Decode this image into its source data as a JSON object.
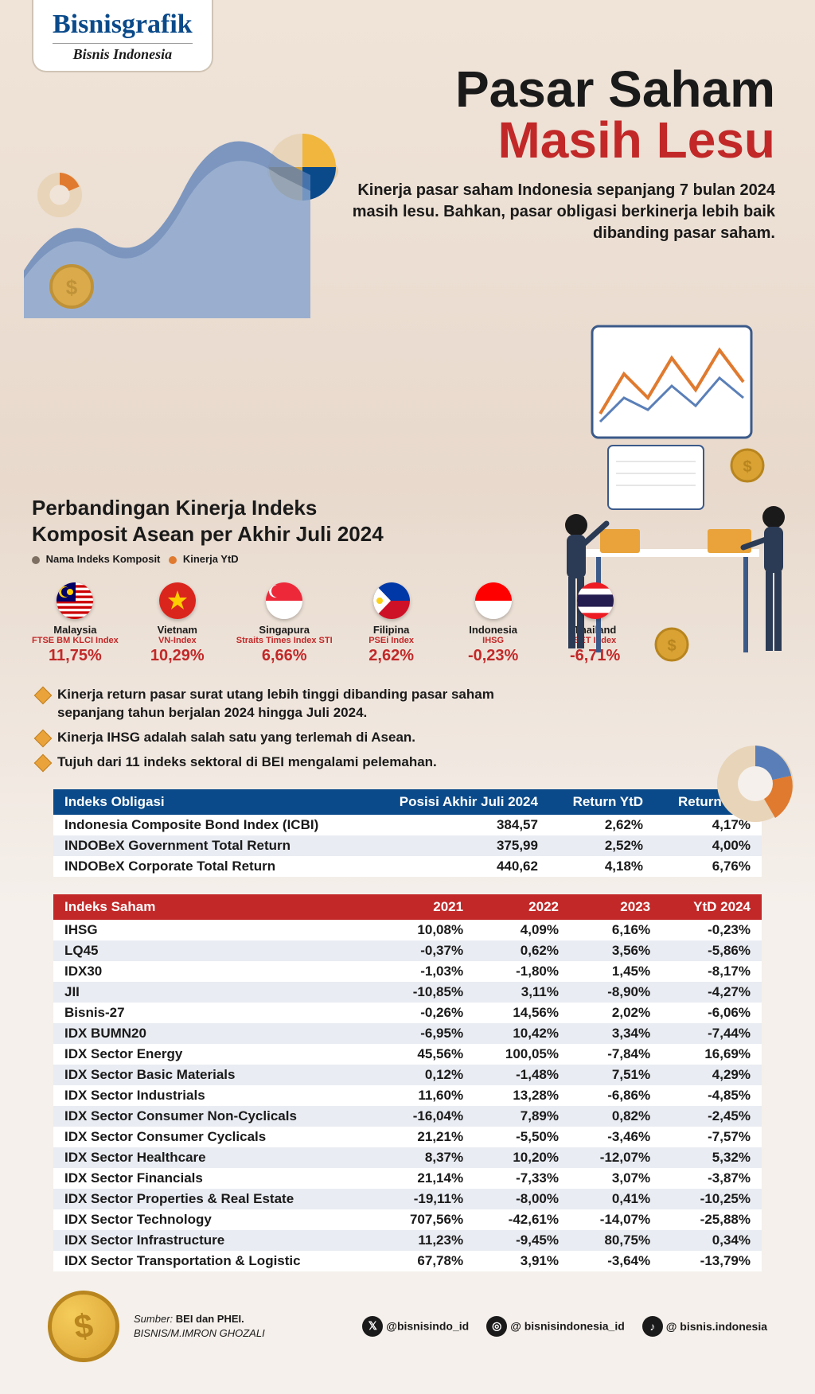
{
  "logo": {
    "main": "Bisnisgrafik",
    "sub": "Bisnis Indonesia"
  },
  "title": {
    "line1": "Pasar Saham",
    "line2": "Masih Lesu",
    "line1_color": "#1a1a1a",
    "line2_color": "#c22828",
    "fontsize": 64
  },
  "subtitle": "Kinerja pasar saham Indonesia sepanjang 7 bulan 2024 masih lesu. Bahkan, pasar obligasi berkinerja lebih baik dibanding pasar saham.",
  "compare_heading_l1": "Perbandingan Kinerja Indeks",
  "compare_heading_l2": "Komposit Asean per Akhir Juli 2024",
  "legend": {
    "item1": {
      "label": "Nama Indeks Komposit",
      "color": "#7d6f61"
    },
    "item2": {
      "label": "Kinerja YtD",
      "color": "#e07a2f"
    }
  },
  "flags": [
    {
      "country": "Malaysia",
      "index": "FTSE BM KLCI Index",
      "value": "11,75%",
      "value_color": "#c22828",
      "flag_bg": "#0a4a8a",
      "flag_stripes": "my"
    },
    {
      "country": "Vietnam",
      "index": "VN-Index",
      "value": "10,29%",
      "value_color": "#c22828",
      "flag_bg": "#da251d",
      "flag_stripes": "vn"
    },
    {
      "country": "Singapura",
      "index": "Straits Times Index STI",
      "value": "6,66%",
      "value_color": "#c22828",
      "flag_bg": "#ed2939",
      "flag_stripes": "sg"
    },
    {
      "country": "Filipina",
      "index": "PSEi Index",
      "value": "2,62%",
      "value_color": "#c22828",
      "flag_bg": "#0038a8",
      "flag_stripes": "ph"
    },
    {
      "country": "Indonesia",
      "index": "IHSG",
      "value": "-0,23%",
      "value_color": "#c22828",
      "flag_bg": "#ff0000",
      "flag_stripes": "id"
    },
    {
      "country": "Thailand",
      "index": "SET Index",
      "value": "-6,71%",
      "value_color": "#c22828",
      "flag_bg": "#a51931",
      "flag_stripes": "th"
    }
  ],
  "notes": [
    "Kinerja return pasar surat utang lebih tinggi dibanding pasar saham sepanjang tahun berjalan 2024 hingga Juli 2024.",
    "Kinerja IHSG adalah salah satu yang terlemah di Asean.",
    "Tujuh dari 11 indeks sektoral di BEI mengalami pelemahan."
  ],
  "table_bonds": {
    "header_bg": "#0a4a8a",
    "columns": [
      "Indeks Obligasi",
      "Posisi Akhir Juli 2024",
      "Return YtD",
      "Return YoY"
    ],
    "rows": [
      [
        "Indonesia Composite Bond Index (ICBI)",
        "384,57",
        "2,62%",
        "4,17%"
      ],
      [
        "INDOBeX Government Total Return",
        "375,99",
        "2,52%",
        "4,00%"
      ],
      [
        "INDOBeX Corporate Total Return",
        "440,62",
        "4,18%",
        "6,76%"
      ]
    ]
  },
  "table_stocks": {
    "header_bg": "#c22828",
    "columns": [
      "Indeks Saham",
      "2021",
      "2022",
      "2023",
      "YtD 2024"
    ],
    "rows": [
      [
        "IHSG",
        "10,08%",
        "4,09%",
        "6,16%",
        "-0,23%"
      ],
      [
        "LQ45",
        "-0,37%",
        "0,62%",
        "3,56%",
        "-5,86%"
      ],
      [
        "IDX30",
        "-1,03%",
        "-1,80%",
        "1,45%",
        "-8,17%"
      ],
      [
        "JII",
        "-10,85%",
        "3,11%",
        "-8,90%",
        "-4,27%"
      ],
      [
        "Bisnis-27",
        "-0,26%",
        "14,56%",
        "2,02%",
        "-6,06%"
      ],
      [
        "IDX BUMN20",
        "-6,95%",
        "10,42%",
        "3,34%",
        "-7,44%"
      ],
      [
        "IDX Sector Energy",
        "45,56%",
        "100,05%",
        "-7,84%",
        "16,69%"
      ],
      [
        "IDX Sector Basic Materials",
        "0,12%",
        "-1,48%",
        "7,51%",
        "4,29%"
      ],
      [
        "IDX Sector Industrials",
        "11,60%",
        "13,28%",
        "-6,86%",
        "-4,85%"
      ],
      [
        "IDX Sector Consumer Non-Cyclicals",
        "-16,04%",
        "7,89%",
        "0,82%",
        "-2,45%"
      ],
      [
        "IDX Sector Consumer Cyclicals",
        "21,21%",
        "-5,50%",
        "-3,46%",
        "-7,57%"
      ],
      [
        "IDX Sector Healthcare",
        "8,37%",
        "10,20%",
        "-12,07%",
        "5,32%"
      ],
      [
        "IDX Sector Financials",
        "21,14%",
        "-7,33%",
        "3,07%",
        "-3,87%"
      ],
      [
        "IDX Sector Properties & Real Estate",
        "-19,11%",
        "-8,00%",
        "0,41%",
        "-10,25%"
      ],
      [
        "IDX Sector Technology",
        "707,56%",
        "-42,61%",
        "-14,07%",
        "-25,88%"
      ],
      [
        "IDX Sector Infrastructure",
        "11,23%",
        "-9,45%",
        "80,75%",
        "0,34%"
      ],
      [
        "IDX Sector Transportation & Logistic",
        "67,78%",
        "3,91%",
        "-3,64%",
        "-13,79%"
      ]
    ]
  },
  "footer": {
    "source_label": "Sumber:",
    "source_text": "BEI dan PHEI.",
    "credit": "BISNIS/M.IMRON GHOZALI",
    "socials": [
      {
        "icon": "x",
        "handle": "@bisnisindo_id"
      },
      {
        "icon": "instagram",
        "handle": "@ bisnisindonesia_id"
      },
      {
        "icon": "tiktok",
        "handle": "@ bisnis.indonesia"
      }
    ]
  },
  "colors": {
    "bg_top": "#f0e4d9",
    "bg_bottom": "#f5f0eb",
    "accent_blue": "#0a4a8a",
    "accent_red": "#c22828",
    "accent_orange": "#e9a33a",
    "row_alt": "#e9ecf2"
  }
}
